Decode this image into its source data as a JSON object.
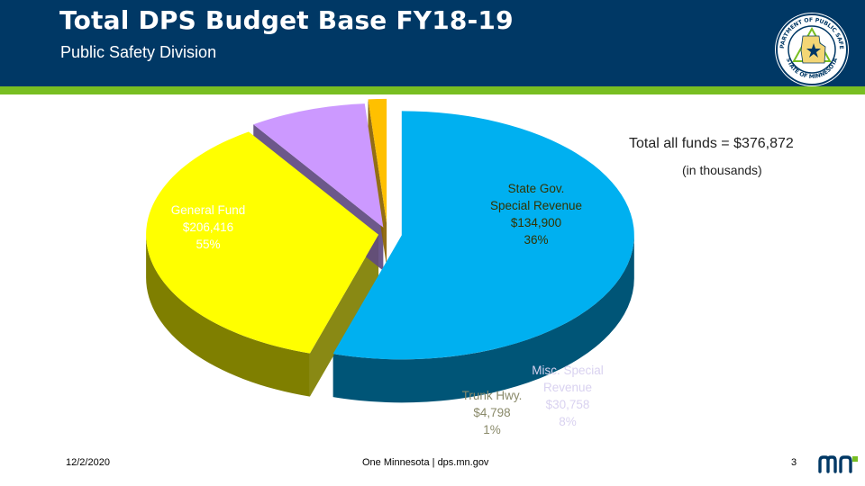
{
  "header": {
    "title": "Total DPS Budget Base FY18-19",
    "subtitle": "Public Safety Division",
    "seal_text_top": "DEPARTMENT OF PUBLIC SAFETY",
    "seal_text_bottom": "STATE OF MINNESOTA"
  },
  "chart_data": {
    "type": "pie",
    "style": "3d-exploded",
    "total_label": "Total all funds = $376,872",
    "units_label": "(in thousands)",
    "slices": [
      {
        "name": "General Fund",
        "value": 206416,
        "value_label": "$206,416",
        "percent_label": "55%",
        "top_color": "#00b0f0",
        "side_color": "#005577"
      },
      {
        "name": "State Gov. Special Revenue",
        "value": 134900,
        "value_label": "$134,900",
        "percent_label": "36%",
        "top_color": "#ffff00",
        "side_color": "#7f7f00"
      },
      {
        "name": "Misc. Special Revenue",
        "value": 30758,
        "value_label": "$30,758",
        "percent_label": "8%",
        "top_color": "#cc99ff",
        "side_color": "#5f4a80"
      },
      {
        "name": "Trunk Hwy.",
        "value": 4798,
        "value_label": "$4,798",
        "percent_label": "1%",
        "top_color": "#ffc000",
        "side_color": "#8a6200"
      }
    ],
    "labels": {
      "general": [
        "General Fund",
        "$206,416",
        "55%"
      ],
      "stategov": [
        "State Gov.",
        "Special Revenue",
        "$134,900",
        "36%"
      ],
      "misc": [
        "Misc. Special",
        "Revenue",
        "$30,758",
        "8%"
      ],
      "trunk": [
        "Trunk Hwy.",
        "$4,798",
        "1%"
      ]
    }
  },
  "footer": {
    "date": "12/2/2020",
    "center": "One Minnesota | dps.mn.gov",
    "page": "3"
  },
  "colors": {
    "header_bg": "#003865",
    "accent_band": "#78be21"
  }
}
